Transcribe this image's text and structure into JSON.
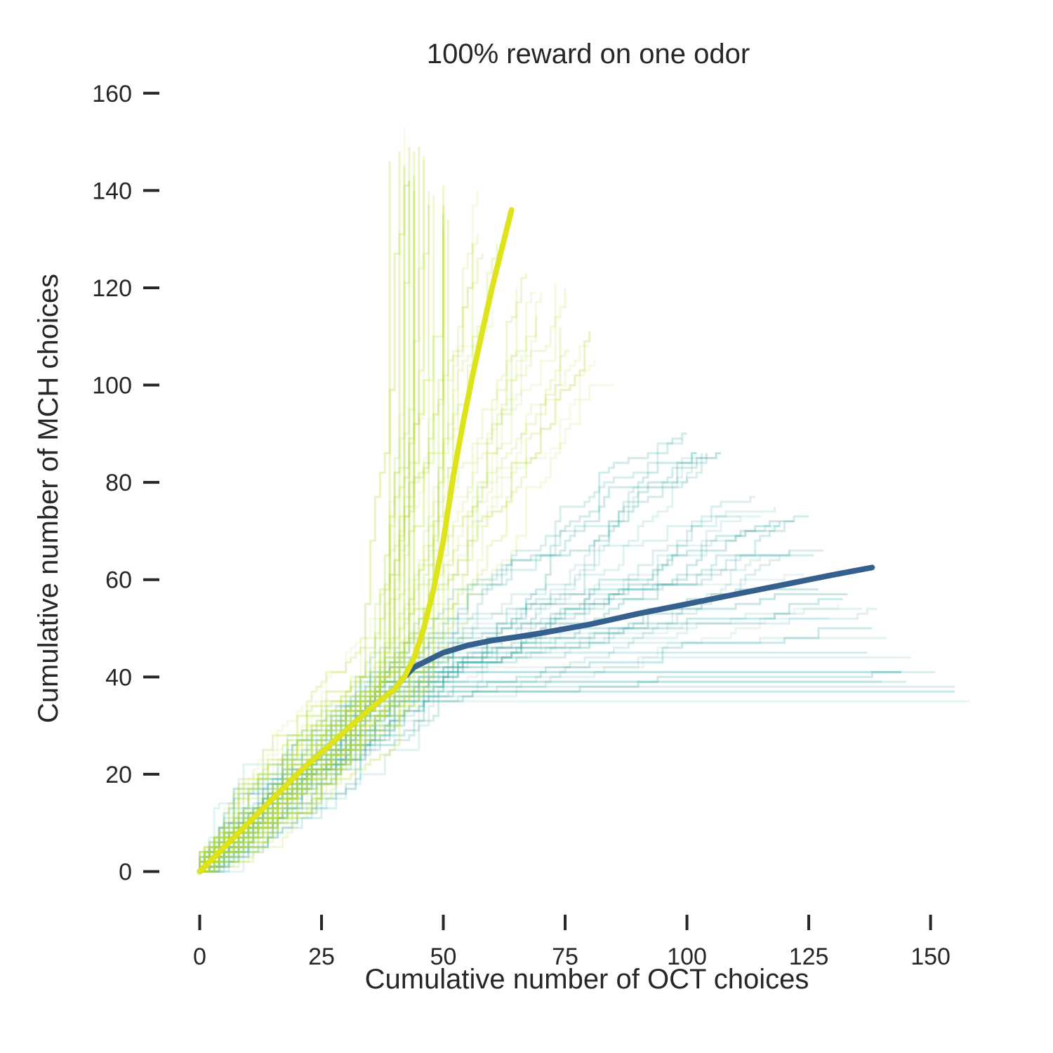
{
  "chart_data": {
    "type": "line",
    "title": "100% reward on one odor",
    "xlabel": "Cumulative number of OCT choices",
    "ylabel": "Cumulative number of MCH choices",
    "xlim": [
      -9,
      160
    ],
    "ylim": [
      -7,
      163
    ],
    "xticks": [
      0,
      25,
      50,
      75,
      100,
      125,
      150
    ],
    "yticks": [
      0,
      20,
      40,
      60,
      80,
      100,
      120,
      140,
      160
    ],
    "grid": false,
    "series": [
      {
        "color": "#dfe31a",
        "style": "mean",
        "x": [
          0,
          5,
          10,
          15,
          20,
          25,
          30,
          35,
          40,
          42,
          44,
          46,
          48,
          50,
          52,
          54,
          56,
          58,
          60,
          62,
          64
        ],
        "y": [
          0,
          5,
          10,
          15,
          20,
          24.5,
          29,
          33.5,
          37.5,
          40,
          44,
          50,
          58,
          68,
          81,
          92,
          102,
          111,
          120,
          128,
          136
        ]
      },
      {
        "color": "#355f8d",
        "style": "mean",
        "x": [
          0,
          5,
          10,
          15,
          20,
          25,
          30,
          35,
          40,
          42,
          44,
          46,
          48,
          50,
          55,
          60,
          65,
          70,
          80,
          90,
          100,
          110,
          120,
          130,
          138
        ],
        "y": [
          0,
          5,
          10,
          15,
          20,
          24.5,
          29,
          33.5,
          37.5,
          40,
          42,
          43,
          44,
          45,
          46.5,
          47.5,
          48.2,
          49,
          50.8,
          53,
          55,
          57,
          59,
          61,
          62.5
        ]
      },
      {
        "color": "#a6d92e",
        "style": "individual",
        "count": 40,
        "note_end_points_mch_oct": [
          [
            44,
            157
          ],
          [
            46,
            153
          ],
          [
            48,
            150
          ],
          [
            50,
            147
          ],
          [
            54,
            144
          ],
          [
            58,
            140
          ],
          [
            62,
            136
          ],
          [
            66,
            130
          ],
          [
            70,
            126
          ],
          [
            75,
            122
          ],
          [
            80,
            118
          ],
          [
            87,
            111
          ]
        ]
      },
      {
        "color": "#2a9e9c",
        "style": "individual",
        "count": 40,
        "note_end_points_mch_oct": [
          [
            108,
            92
          ],
          [
            113,
            87
          ],
          [
            120,
            78
          ],
          [
            125,
            74
          ],
          [
            130,
            68
          ],
          [
            135,
            62
          ],
          [
            140,
            56
          ],
          [
            145,
            50
          ],
          [
            150,
            45
          ],
          [
            155,
            44
          ],
          [
            160,
            40
          ]
        ]
      }
    ]
  }
}
